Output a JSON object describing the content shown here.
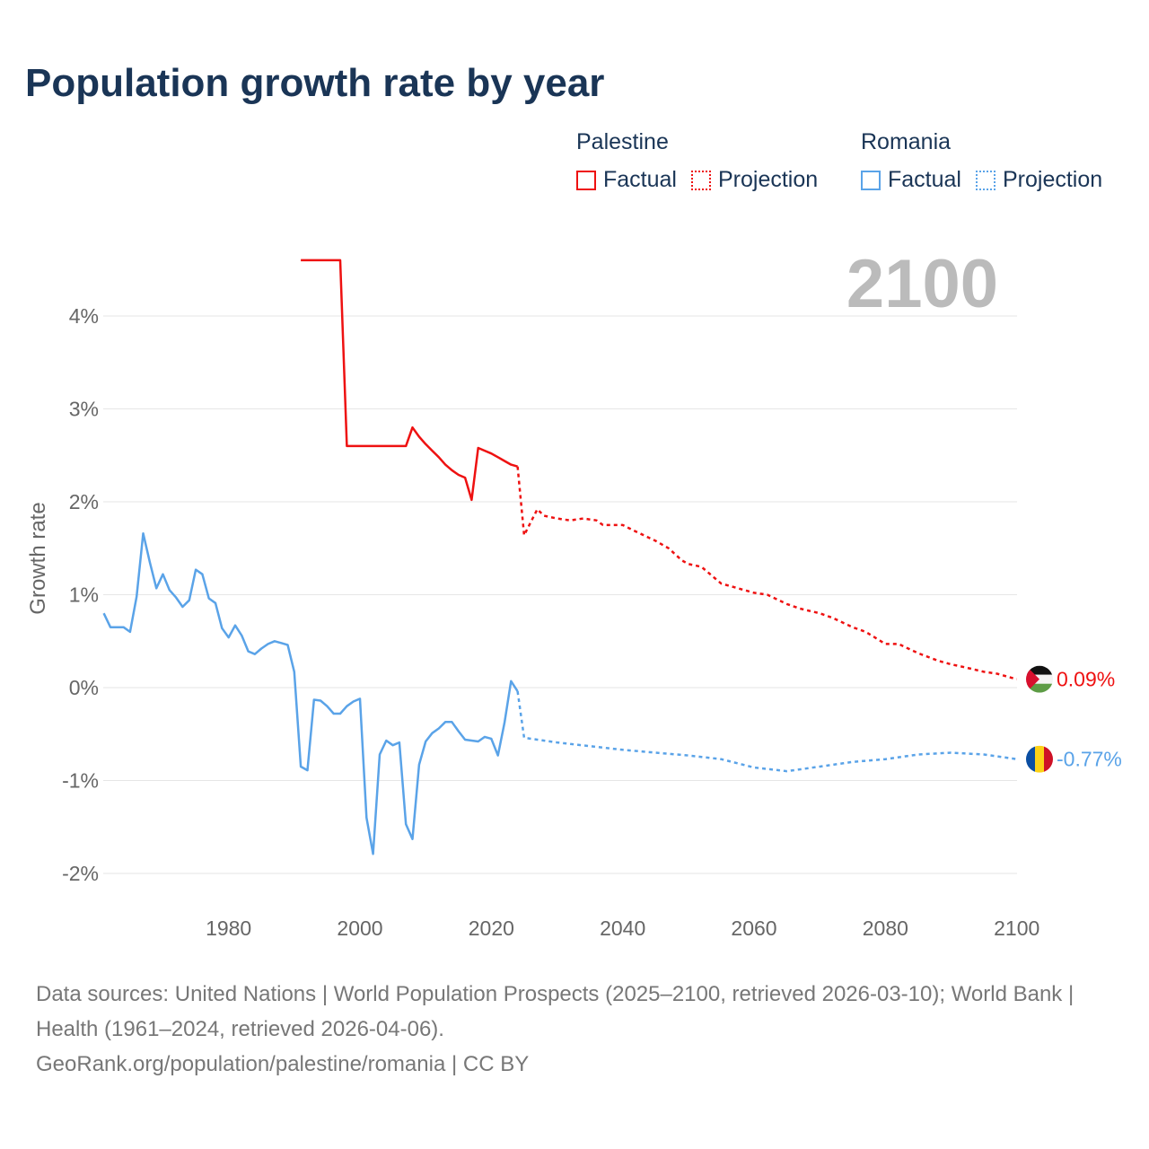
{
  "chart_data": {
    "type": "line",
    "title": "Population growth rate by year",
    "ylabel": "Growth rate",
    "xlabel": "",
    "xlim": [
      1960.8,
      2100
    ],
    "ylim": [
      -2.2,
      4.7
    ],
    "x_ticks": [
      1980,
      2000,
      2020,
      2040,
      2060,
      2080,
      2100
    ],
    "y_ticks": [
      -2,
      -1,
      0,
      1,
      2,
      3,
      4
    ],
    "y_tick_labels": [
      "-2%",
      "-1%",
      "0%",
      "1%",
      "2%",
      "3%",
      "4%"
    ],
    "grid": true,
    "year_label": "2100",
    "legend_placement": "top-right",
    "series": [
      {
        "name": "Palestine",
        "kind": "Factual",
        "color": "#ee1111",
        "dashed": false,
        "x": [
          1991,
          1997,
          1998,
          2007,
          2008,
          2009,
          2010,
          2011,
          2012,
          2013,
          2014,
          2015,
          2016,
          2017,
          2018,
          2019,
          2020,
          2021,
          2022,
          2023,
          2024
        ],
        "y": [
          4.6,
          4.6,
          2.6,
          2.6,
          2.8,
          2.7,
          2.62,
          2.55,
          2.48,
          2.4,
          2.34,
          2.29,
          2.26,
          2.02,
          2.58,
          2.55,
          2.52,
          2.48,
          2.44,
          2.4,
          2.38
        ]
      },
      {
        "name": "Palestine",
        "kind": "Projection",
        "color": "#ee1111",
        "dashed": true,
        "x": [
          2024,
          2025,
          2026,
          2027,
          2028,
          2030,
          2032,
          2034,
          2036,
          2037,
          2040,
          2042,
          2045,
          2047,
          2049,
          2050,
          2052,
          2055,
          2057,
          2060,
          2062,
          2065,
          2067,
          2070,
          2072,
          2075,
          2077,
          2080,
          2082,
          2085,
          2088,
          2090,
          2092,
          2095,
          2097,
          2100
        ],
        "y": [
          2.38,
          1.64,
          1.78,
          1.92,
          1.85,
          1.82,
          1.8,
          1.82,
          1.8,
          1.75,
          1.75,
          1.68,
          1.58,
          1.5,
          1.37,
          1.33,
          1.3,
          1.12,
          1.08,
          1.02,
          1.0,
          0.9,
          0.85,
          0.8,
          0.75,
          0.65,
          0.6,
          0.47,
          0.47,
          0.37,
          0.29,
          0.25,
          0.22,
          0.17,
          0.15,
          0.09
        ]
      },
      {
        "name": "Romania",
        "kind": "Factual",
        "color": "#5aa3e8",
        "dashed": false,
        "x": [
          1961,
          1962,
          1963,
          1964,
          1965,
          1966,
          1967,
          1968,
          1969,
          1970,
          1971,
          1972,
          1973,
          1974,
          1975,
          1976,
          1977,
          1978,
          1979,
          1980,
          1981,
          1982,
          1983,
          1984,
          1985,
          1986,
          1987,
          1988,
          1989,
          1990,
          1991,
          1992,
          1993,
          1994,
          1995,
          1996,
          1997,
          1998,
          1999,
          2000,
          2001,
          2002,
          2003,
          2004,
          2005,
          2006,
          2007,
          2008,
          2009,
          2010,
          2011,
          2012,
          2013,
          2014,
          2015,
          2016,
          2017,
          2018,
          2019,
          2020,
          2021,
          2022,
          2023,
          2024
        ],
        "y": [
          0.8,
          0.65,
          0.65,
          0.65,
          0.6,
          0.98,
          1.66,
          1.35,
          1.07,
          1.22,
          1.05,
          0.97,
          0.87,
          0.94,
          1.27,
          1.22,
          0.96,
          0.91,
          0.64,
          0.54,
          0.67,
          0.56,
          0.39,
          0.36,
          0.42,
          0.47,
          0.5,
          0.48,
          0.46,
          0.17,
          -0.85,
          -0.89,
          -0.13,
          -0.14,
          -0.2,
          -0.28,
          -0.28,
          -0.2,
          -0.15,
          -0.12,
          -1.4,
          -1.79,
          -0.72,
          -0.57,
          -0.62,
          -0.59,
          -1.47,
          -1.63,
          -0.83,
          -0.58,
          -0.49,
          -0.44,
          -0.37,
          -0.37,
          -0.47,
          -0.56,
          -0.57,
          -0.58,
          -0.53,
          -0.55,
          -0.73,
          -0.38,
          0.07,
          -0.04
        ]
      },
      {
        "name": "Romania",
        "kind": "Projection",
        "color": "#5aa3e8",
        "dashed": true,
        "x": [
          2024,
          2025,
          2030,
          2035,
          2040,
          2045,
          2050,
          2055,
          2060,
          2065,
          2070,
          2075,
          2080,
          2085,
          2090,
          2095,
          2100
        ],
        "y": [
          -0.04,
          -0.54,
          -0.59,
          -0.63,
          -0.67,
          -0.7,
          -0.73,
          -0.77,
          -0.86,
          -0.9,
          -0.85,
          -0.8,
          -0.77,
          -0.72,
          -0.7,
          -0.72,
          -0.77
        ]
      }
    ],
    "end_labels": [
      {
        "country": "Palestine",
        "value": "0.09%",
        "color": "#ee1111",
        "y": 0.09
      },
      {
        "country": "Romania",
        "value": "-0.77%",
        "color": "#5aa3e8",
        "y": -0.77
      }
    ]
  },
  "legend": {
    "groups": [
      {
        "name": "Palestine",
        "factual": "Factual",
        "projection": "Projection",
        "color": "#ee1111"
      },
      {
        "name": "Romania",
        "factual": "Factual",
        "projection": "Projection",
        "color": "#5aa3e8"
      }
    ]
  },
  "footer": {
    "sources": "Data sources: United Nations | World Population Prospects (2025–2100, retrieved 2026-03-10); World Bank | Health (1961–2024, retrieved 2026-04-06).",
    "credit": "GeoRank.org/population/palestine/romania | CC BY"
  }
}
